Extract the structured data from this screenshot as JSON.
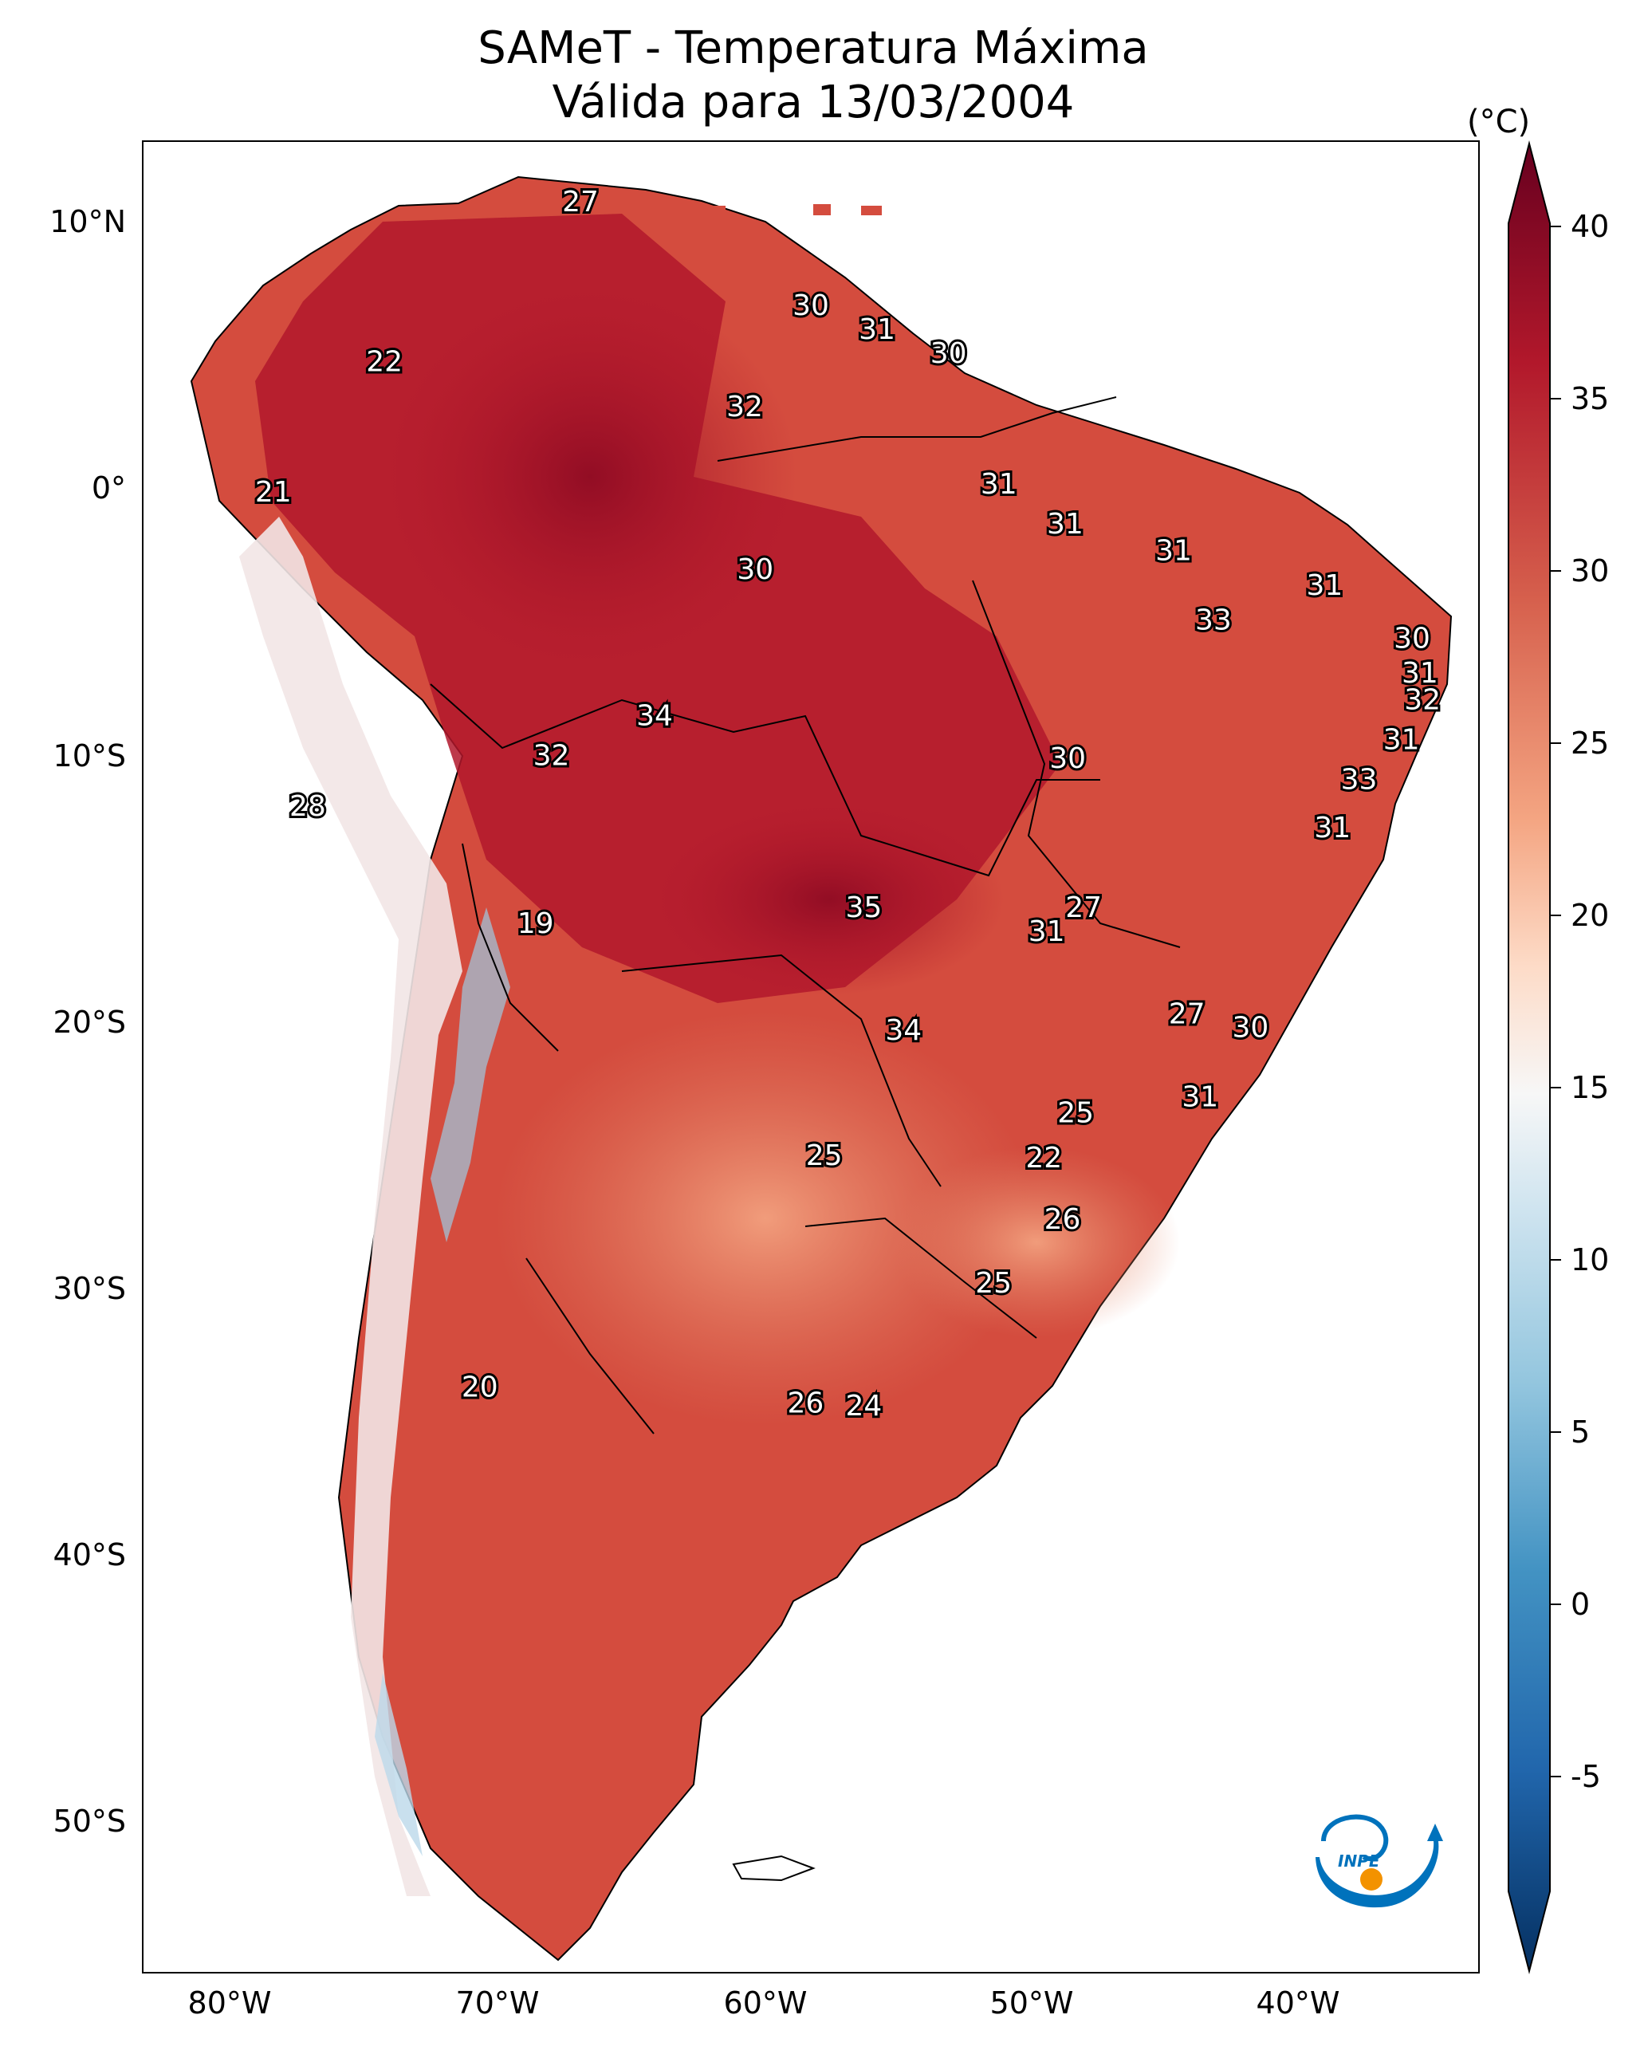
{
  "title": {
    "line1": "SAMeT - Temperatura Máxima",
    "line2": "Válida para 13/03/2004"
  },
  "map": {
    "lat_ticks": [
      "10°N",
      "0°",
      "10°S",
      "20°S",
      "30°S",
      "40°S",
      "50°S"
    ],
    "lon_ticks": [
      "80°W",
      "70°W",
      "60°W",
      "50°W",
      "40°W"
    ],
    "labels": [
      {
        "text": "27",
        "lon": -66.5,
        "lat": 10.6
      },
      {
        "text": "30",
        "lon": -57.8,
        "lat": 6.7
      },
      {
        "text": "31",
        "lon": -55.3,
        "lat": 5.8
      },
      {
        "text": "30",
        "lon": -52.6,
        "lat": 4.9
      },
      {
        "text": "22",
        "lon": -73.9,
        "lat": 4.6
      },
      {
        "text": "32",
        "lon": -60.3,
        "lat": 2.9
      },
      {
        "text": "31",
        "lon": -50.7,
        "lat": 0.0
      },
      {
        "text": "21",
        "lon": -78.1,
        "lat": -0.3
      },
      {
        "text": "31",
        "lon": -48.2,
        "lat": -1.5
      },
      {
        "text": "31",
        "lon": -44.1,
        "lat": -2.5
      },
      {
        "text": "30",
        "lon": -59.9,
        "lat": -3.2
      },
      {
        "text": "31",
        "lon": -38.4,
        "lat": -3.8
      },
      {
        "text": "33",
        "lon": -42.6,
        "lat": -5.1
      },
      {
        "text": "30",
        "lon": -35.1,
        "lat": -5.8
      },
      {
        "text": "31",
        "lon": -34.8,
        "lat": -7.1
      },
      {
        "text": "32",
        "lon": -34.7,
        "lat": -8.1
      },
      {
        "text": "34",
        "lon": -63.7,
        "lat": -8.7
      },
      {
        "text": "31",
        "lon": -35.5,
        "lat": -9.6
      },
      {
        "text": "32",
        "lon": -67.6,
        "lat": -10.2
      },
      {
        "text": "30",
        "lon": -48.1,
        "lat": -10.3
      },
      {
        "text": "33",
        "lon": -37.1,
        "lat": -11.1
      },
      {
        "text": "28",
        "lon": -76.8,
        "lat": -12.1
      },
      {
        "text": "31",
        "lon": -38.1,
        "lat": -12.9
      },
      {
        "text": "27",
        "lon": -47.5,
        "lat": -15.9
      },
      {
        "text": "35",
        "lon": -55.8,
        "lat": -15.9
      },
      {
        "text": "31",
        "lon": -48.9,
        "lat": -16.8
      },
      {
        "text": "19",
        "lon": -68.2,
        "lat": -16.5
      },
      {
        "text": "27",
        "lon": -43.6,
        "lat": -19.9
      },
      {
        "text": "30",
        "lon": -41.2,
        "lat": -20.4
      },
      {
        "text": "34",
        "lon": -54.3,
        "lat": -20.5
      },
      {
        "text": "31",
        "lon": -43.1,
        "lat": -23.0
      },
      {
        "text": "25",
        "lon": -47.8,
        "lat": -23.6
      },
      {
        "text": "25",
        "lon": -57.3,
        "lat": -25.2
      },
      {
        "text": "22",
        "lon": -49.0,
        "lat": -25.3
      },
      {
        "text": "26",
        "lon": -48.3,
        "lat": -27.6
      },
      {
        "text": "25",
        "lon": -50.9,
        "lat": -30.0
      },
      {
        "text": "20",
        "lon": -70.3,
        "lat": -33.9
      },
      {
        "text": "26",
        "lon": -58.0,
        "lat": -34.5
      },
      {
        "text": "24",
        "lon": -55.8,
        "lat": -34.6
      }
    ]
  },
  "colorbar": {
    "unit": "(°C)",
    "ticks": [
      "40",
      "35",
      "30",
      "25",
      "20",
      "15",
      "10",
      "5",
      "0",
      "-5"
    ],
    "min": -7,
    "max": 41,
    "colors": [
      "#67001f",
      "#b2182b",
      "#d6604d",
      "#f4a582",
      "#fddbc7",
      "#f7f7f7",
      "#d1e5f0",
      "#92c5de",
      "#4393c3",
      "#2166ac",
      "#053061"
    ]
  },
  "logo": {
    "text": "INPE",
    "accent": "#f39200",
    "primary": "#0072bc"
  }
}
